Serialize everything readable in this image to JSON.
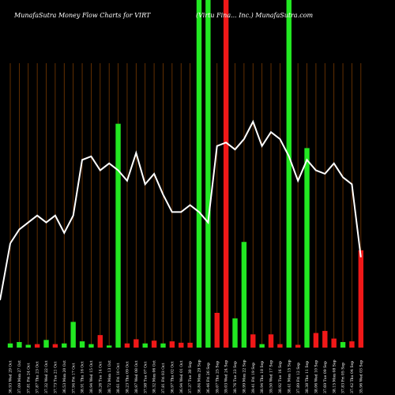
{
  "chart_data": {
    "type": "bar",
    "title": "MunafaSutra  Money Flow  Charts for VIRT",
    "title_right": "(Virtu Fina... Inc.) MunafaSutra.com",
    "series": [
      {
        "values": [
          6,
          8,
          4,
          5,
          11,
          5,
          6,
          37,
          9,
          5,
          18,
          3,
          322,
          6,
          12,
          6,
          10,
          6,
          9,
          7,
          7,
          500,
          500,
          50,
          500,
          42,
          152,
          19,
          5,
          19,
          5,
          500,
          4,
          287,
          21,
          24,
          13,
          8,
          9,
          140
        ],
        "colors": [
          "green",
          "green",
          "green",
          "red",
          "green",
          "red",
          "green",
          "green",
          "green",
          "green",
          "red",
          "green",
          "green",
          "red",
          "red",
          "green",
          "red",
          "green",
          "red",
          "red",
          "red",
          "green",
          "green",
          "red",
          "red",
          "green",
          "green",
          "red",
          "green",
          "red",
          "red",
          "green",
          "red",
          "green",
          "red",
          "red",
          "red",
          "green",
          "red",
          "red"
        ]
      },
      {
        "line_values": [
          30,
          34,
          36,
          38,
          36,
          38,
          33,
          38,
          54,
          55,
          51,
          53,
          51,
          48,
          56,
          47,
          50,
          44,
          39,
          39,
          41,
          39,
          36,
          58,
          59,
          57,
          60,
          65,
          58,
          62,
          60,
          55,
          48,
          54,
          51,
          50,
          53,
          49,
          47,
          26
        ]
      }
    ],
    "x_tick_labels": [
      "Wed 29 Oct",
      "Mon 27 Oct",
      "Fri 24 Oct",
      "Thu 23 Oct",
      "Wed 22 Oct",
      "Tue 21 Oct",
      "Mon 20 Oct",
      "Fri 17 Oct",
      "Thu 16 Oct",
      "Wed 15 Oct",
      "Tue 14 Oct",
      "Mon 13 Oct",
      "Fri 10 Oct",
      "Thu 09 Oct",
      "Wed 08 Oct",
      "Tue 07 Oct",
      "Mon 06 Oct",
      "Fri 03 Oct",
      "Thu 02 Oct",
      "Wed 01 Oct",
      "Tue 30 Sep",
      "Mon 29 Sep",
      "Fri 26 Sep",
      "Thu 25 Sep",
      "Wed 24 Sep",
      "Tue 23 Sep",
      "Mon 22 Sep",
      "Fri 19 Sep",
      "Thu 18 Sep",
      "Wed 17 Sep",
      "Tue 16 Sep",
      "Mon 15 Sep",
      "Fri 12 Sep",
      "Thu 11 Sep",
      "Wed 10 Sep",
      "Tue 09 Sep",
      "Mon 08 Sep",
      "Fri 05 Sep",
      "Thu 04 Sep",
      "Wed 03 Sep"
    ],
    "x_tick_values": [
      "36.93",
      "37.09",
      "37.81",
      "37.87",
      "37.32",
      "37.73",
      "36.53",
      "37.94",
      "38.91",
      "38.94",
      "38.26",
      "38.72",
      "38.61",
      "38.23",
      "38.97",
      "37.98",
      "38.32",
      "37.81",
      "36.97",
      "36.94",
      "37.37",
      "36.84",
      "36.46",
      "39.07",
      "39.03",
      "38.76",
      "38.99",
      "39.41",
      "38.94",
      "39.50",
      "38.92",
      "38.41",
      "37.89",
      "38.38",
      "38.06",
      "37.69",
      "38.15",
      "37.83",
      "37.42",
      "35.96"
    ],
    "ylim": [
      0,
      500
    ],
    "grid": true,
    "colors": {
      "green": "#22e822",
      "red": "#f01818",
      "grid": "#7a3a00",
      "line": "#ffffff",
      "background": "#000000"
    }
  }
}
